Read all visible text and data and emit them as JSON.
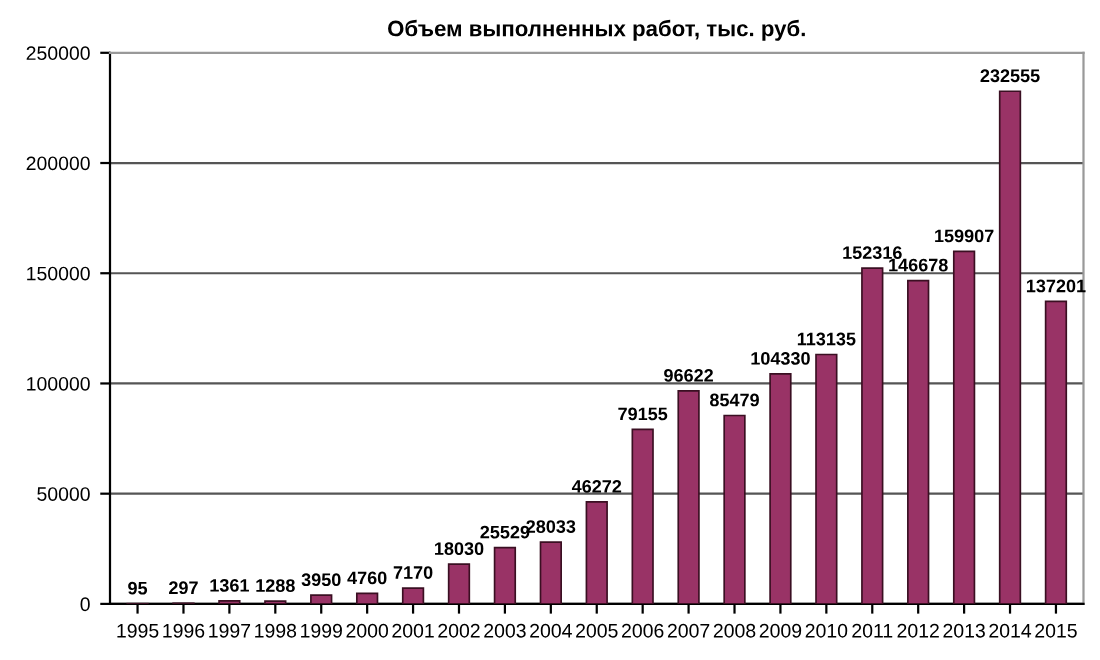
{
  "chart_data": {
    "type": "bar",
    "title": "Объем выполненных работ, тыс. руб.",
    "categories": [
      "1995",
      "1996",
      "1997",
      "1998",
      "1999",
      "2000",
      "2001",
      "2002",
      "2003",
      "2004",
      "2005",
      "2006",
      "2007",
      "2008",
      "2009",
      "2010",
      "2011",
      "2012",
      "2013",
      "2014",
      "2015"
    ],
    "values": [
      95,
      297,
      1361,
      1288,
      3950,
      4760,
      7170,
      18030,
      25529,
      28033,
      46272,
      79155,
      96622,
      85479,
      104330,
      113135,
      152316,
      146678,
      159907,
      232555,
      137201
    ],
    "color": "#993366",
    "ylim": [
      0,
      250000
    ],
    "yticks": [
      0,
      50000,
      100000,
      150000,
      200000,
      250000
    ],
    "grid": "y",
    "data_labels": true
  }
}
